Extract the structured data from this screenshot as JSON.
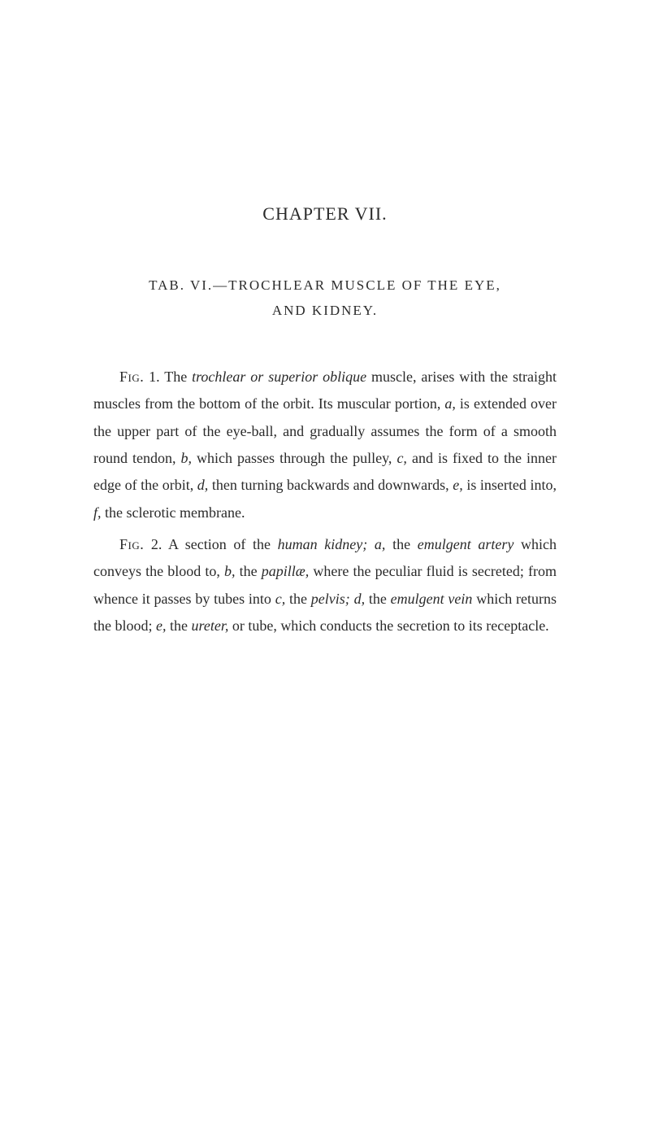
{
  "chapter": {
    "title": "CHAPTER VII."
  },
  "tab": {
    "line1": "TAB. VI.—TROCHLEAR MUSCLE OF THE EYE,",
    "line2": "AND KIDNEY."
  },
  "fig1": {
    "label": "Fig.",
    "num": " 1. The ",
    "i1": "trochlear or superior oblique",
    "t1": " muscle, arises with the straight muscles from the bottom of the orbit. Its muscular portion, ",
    "i2": "a,",
    "t2": " is extended over the upper part of the eye-ball, and gradually assumes the form of a smooth round tendon, ",
    "i3": "b,",
    "t3": " which passes through the pulley, ",
    "i4": "c,",
    "t4": " and is fixed to the inner edge of the orbit, ",
    "i5": "d,",
    "t5": " then turning backwards and downwards, ",
    "i6": "e,",
    "t6": " is inserted into, ",
    "i7": "f,",
    "t7": " the sclerotic membrane."
  },
  "fig2": {
    "label": "Fig.",
    "num": " 2. A section of the ",
    "i1": "human kidney;",
    "t1": " ",
    "i2": "a,",
    "t2": " the ",
    "i3": "emulgent artery",
    "t3": " which conveys the blood to, ",
    "i4": "b,",
    "t4": " the ",
    "i5": "papillæ,",
    "t5": " where the peculiar fluid is secreted; from whence it passes by tubes into ",
    "i6": "c,",
    "t6": " the ",
    "i7": "pelvis;",
    "t7": " ",
    "i8": "d,",
    "t8": " the ",
    "i9": "emulgent vein",
    "t9": " which returns the blood; ",
    "i10": "e,",
    "t10": " the ",
    "i11": "ureter,",
    "t11": " or tube, which conducts the secretion to its receptacle."
  }
}
